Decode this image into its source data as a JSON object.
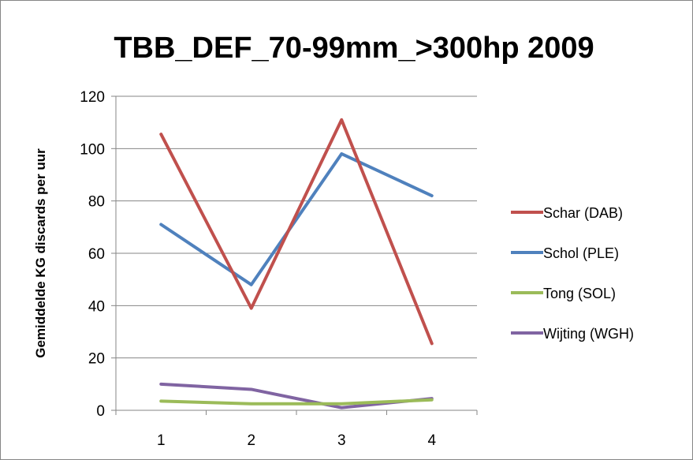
{
  "chart_data": {
    "type": "line",
    "title": "TBB_DEF_70-99mm_>300hp 2009",
    "xlabel": "",
    "ylabel": "Gemiddelde KG discards per uur",
    "x": [
      "1",
      "2",
      "3",
      "4"
    ],
    "ylim": [
      0,
      120
    ],
    "yticks": [
      0,
      20,
      40,
      60,
      80,
      100,
      120
    ],
    "grid": true,
    "legend_position": "right",
    "series": [
      {
        "name": "Schar (DAB)",
        "color": "#c0504d",
        "values": [
          105.5,
          39,
          111,
          25.5
        ]
      },
      {
        "name": "Schol (PLE)",
        "color": "#4f81bd",
        "values": [
          71,
          48,
          98,
          82
        ]
      },
      {
        "name": "Tong (SOL)",
        "color": "#9bbb59",
        "values": [
          3.5,
          2.5,
          2.5,
          4
        ]
      },
      {
        "name": "Wijting (WGH)",
        "color": "#8064a2",
        "values": [
          10,
          8,
          1,
          4.5
        ]
      }
    ]
  }
}
